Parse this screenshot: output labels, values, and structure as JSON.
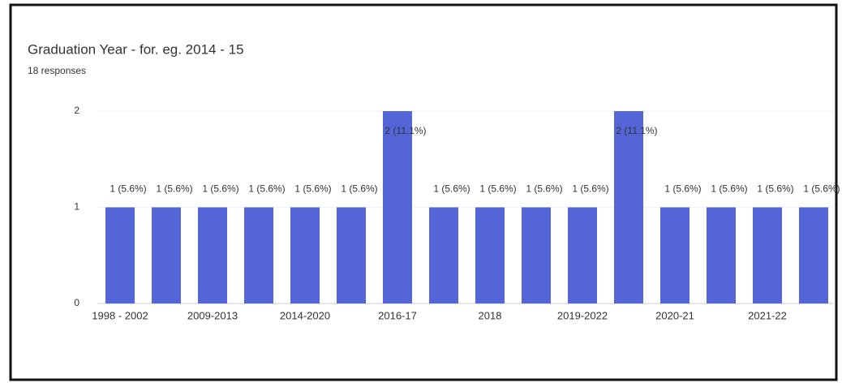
{
  "chart_data": {
    "type": "bar",
    "title": "Graduation Year - for. eg. 2014 - 15",
    "subtitle": "18 responses",
    "categories": [
      "1998 - 2002",
      null,
      "2009-2013",
      null,
      "2014-2020",
      null,
      "2016-17",
      null,
      "2018",
      null,
      "2019-2022",
      null,
      "2020-21",
      null,
      "2021-22",
      null
    ],
    "values": [
      1,
      1,
      1,
      1,
      1,
      1,
      2,
      1,
      1,
      1,
      1,
      2,
      1,
      1,
      1,
      1
    ],
    "value_labels": [
      "1 (5.6%)",
      "1 (5.6%)",
      "1 (5.6%)",
      "1 (5.6%)",
      "1 (5.6%)",
      "1 (5.6%)",
      "2 (11.1%)",
      "1 (5.6%)",
      "1 (5.6%)",
      "1 (5.6%)",
      "1 (5.6%)",
      "2 (11.1%)",
      "1 (5.6%)",
      "1 (5.6%)",
      "1 (5.6%)",
      "1 (5.6%)"
    ],
    "color": "#5465d8",
    "ylim": [
      0,
      2
    ],
    "yticks": [
      0,
      1,
      2
    ],
    "grid": true
  }
}
